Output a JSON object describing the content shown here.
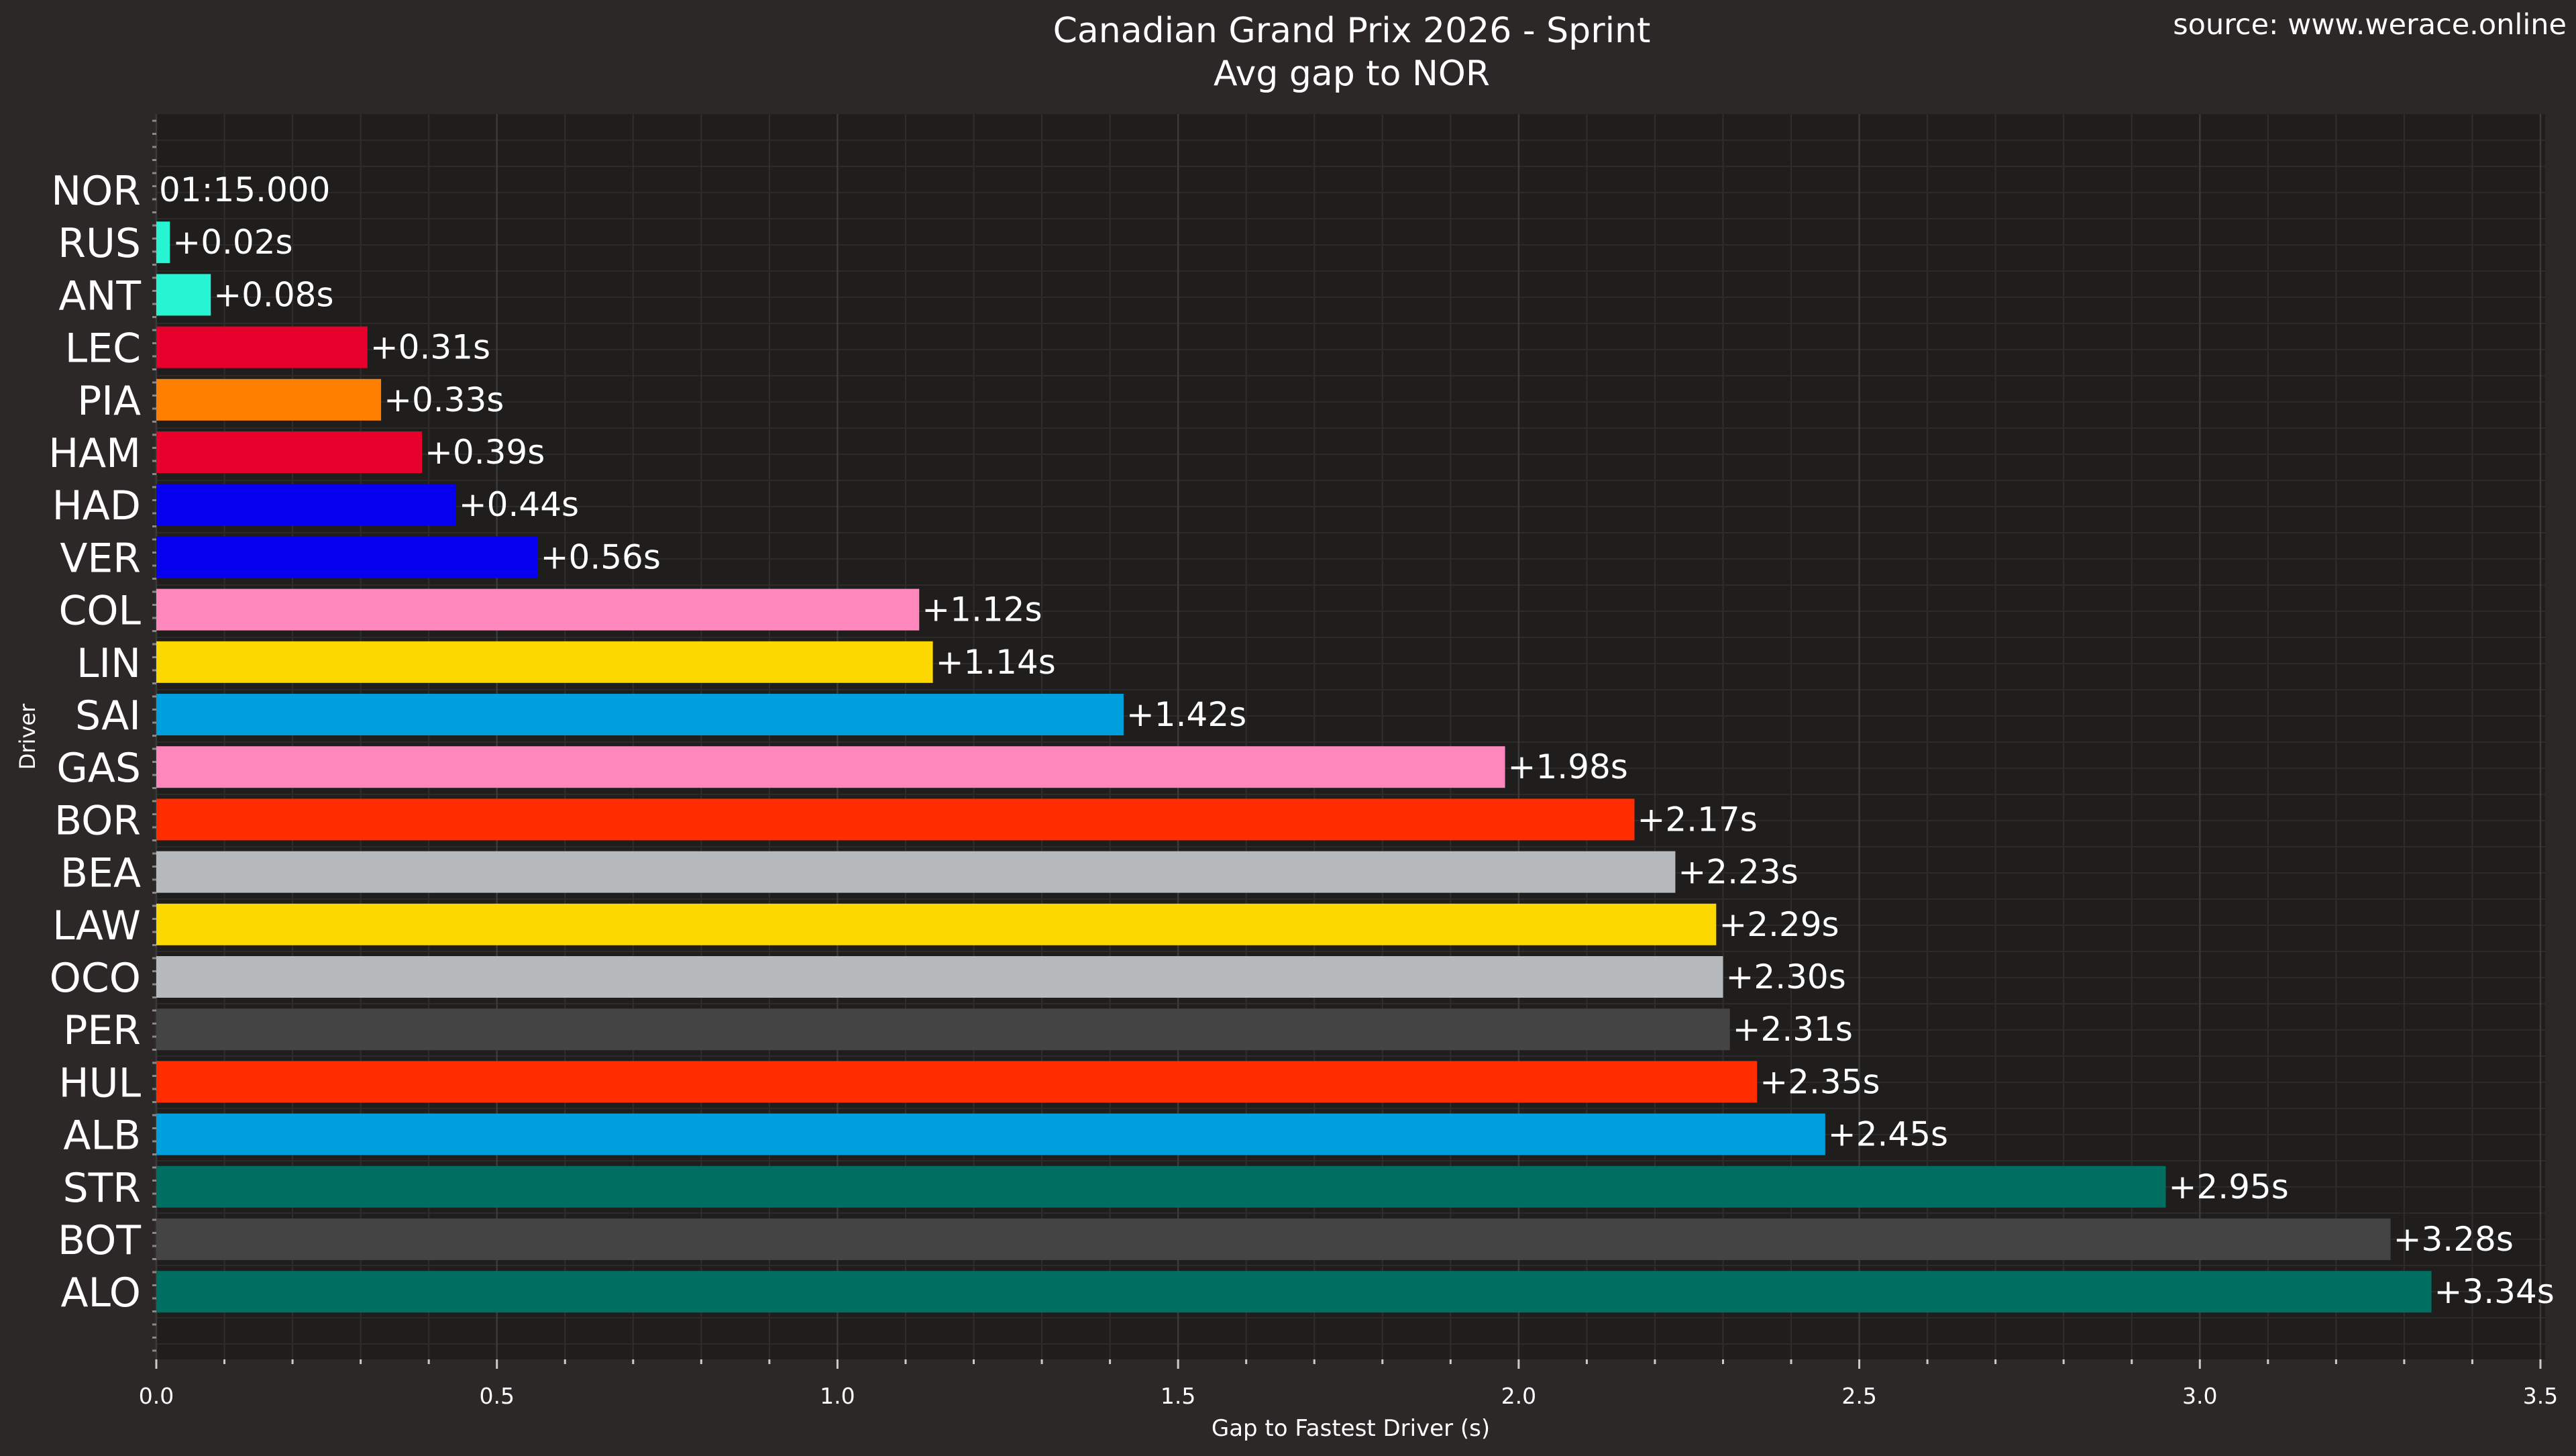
{
  "header": {
    "title": "Canadian Grand Prix 2026 - Sprint",
    "subtitle": "Avg gap to NOR",
    "source": "source: www.werace.online"
  },
  "colors": {
    "figure_bg": "#2b2827",
    "axes_bg": "#1f1e1d",
    "grid": "#3a3a3a",
    "text": "#ffffff"
  },
  "chart_data": {
    "type": "bar",
    "orientation": "horizontal",
    "title": "Canadian Grand Prix 2026 - Sprint",
    "subtitle": "Avg gap to NOR",
    "xlabel": "Gap to Fastest Driver (s)",
    "ylabel": "Driver",
    "xlim": [
      0,
      3.5
    ],
    "xticks": [
      "0.0",
      "0.5",
      "1.0",
      "1.5",
      "2.0",
      "2.5",
      "3.0",
      "3.5"
    ],
    "grid": true,
    "categories": [
      "NOR",
      "RUS",
      "ANT",
      "LEC",
      "PIA",
      "HAM",
      "HAD",
      "VER",
      "COL",
      "LIN",
      "SAI",
      "GAS",
      "BOR",
      "BEA",
      "LAW",
      "OCO",
      "PER",
      "HUL",
      "ALB",
      "STR",
      "BOT",
      "ALO"
    ],
    "values": [
      0,
      0.02,
      0.08,
      0.31,
      0.33,
      0.39,
      0.44,
      0.56,
      1.12,
      1.14,
      1.42,
      1.98,
      2.17,
      2.23,
      2.29,
      2.3,
      2.31,
      2.35,
      2.45,
      2.95,
      3.28,
      3.34
    ],
    "labels": [
      "01:15.000",
      "+0.02s",
      "+0.08s",
      "+0.31s",
      "+0.33s",
      "+0.39s",
      "+0.44s",
      "+0.56s",
      "+1.12s",
      "+1.14s",
      "+1.42s",
      "+1.98s",
      "+2.17s",
      "+2.23s",
      "+2.29s",
      "+2.30s",
      "+2.31s",
      "+2.35s",
      "+2.45s",
      "+2.95s",
      "+3.28s",
      "+3.34s"
    ],
    "colors": [
      "#ff8000",
      "#27f4d2",
      "#27f4d2",
      "#e8002d",
      "#ff8000",
      "#e8002d",
      "#0600ef",
      "#0600ef",
      "#ff87bc",
      "#fcd700",
      "#00a0de",
      "#ff87bc",
      "#ff2d00",
      "#b6babd",
      "#fcd700",
      "#b6babd",
      "#444444",
      "#ff2d00",
      "#00a0de",
      "#006f62",
      "#444444",
      "#006f62"
    ]
  }
}
